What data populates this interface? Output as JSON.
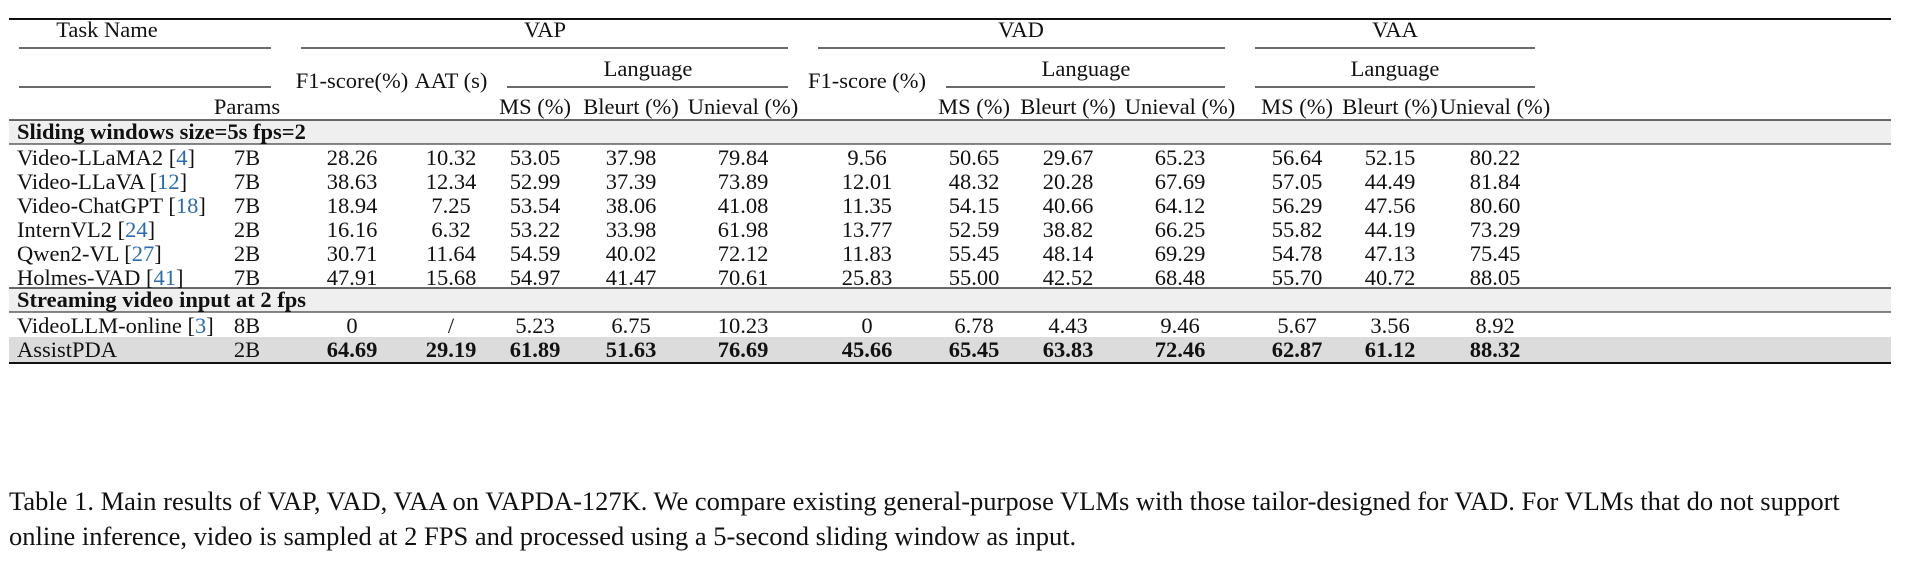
{
  "table": {
    "header": {
      "task_name": "Task Name",
      "params": "Params",
      "groups": [
        "VAP",
        "VAD",
        "VAA"
      ],
      "language": "Language",
      "f1": "F1-score(%)",
      "aat": "AAT (s)",
      "f1_vad": "F1-score (%)",
      "ms": "MS (%)",
      "bleurt": "Bleurt (%)",
      "unieval": "Unieval (%)"
    },
    "sections": [
      {
        "title": "Sliding windows size=5s fps=2",
        "rows": [
          {
            "name": "Video-LLaMA2",
            "ref": "4",
            "params": "7B",
            "cells": [
              "28.26",
              "10.32",
              "53.05",
              "37.98",
              "79.84",
              "9.56",
              "50.65",
              "29.67",
              "65.23",
              "56.64",
              "52.15",
              "80.22"
            ]
          },
          {
            "name": "Video-LLaVA",
            "ref": "12",
            "params": "7B",
            "cells": [
              "38.63",
              "12.34",
              "52.99",
              "37.39",
              "73.89",
              "12.01",
              "48.32",
              "20.28",
              "67.69",
              "57.05",
              "44.49",
              "81.84"
            ]
          },
          {
            "name": "Video-ChatGPT",
            "ref": "18",
            "params": "7B",
            "cells": [
              "18.94",
              "7.25",
              "53.54",
              "38.06",
              "41.08",
              "11.35",
              "54.15",
              "40.66",
              "64.12",
              "56.29",
              "47.56",
              "80.60"
            ]
          },
          {
            "name": "InternVL2",
            "ref": "24",
            "params": "2B",
            "cells": [
              "16.16",
              "6.32",
              "53.22",
              "33.98",
              "61.98",
              "13.77",
              "52.59",
              "38.82",
              "66.25",
              "55.82",
              "44.19",
              "73.29"
            ]
          },
          {
            "name": "Qwen2-VL",
            "ref": "27",
            "params": "2B",
            "cells": [
              "30.71",
              "11.64",
              "54.59",
              "40.02",
              "72.12",
              "11.83",
              "55.45",
              "48.14",
              "69.29",
              "54.78",
              "47.13",
              "75.45"
            ]
          },
          {
            "name": "Holmes-VAD",
            "ref": "41",
            "params": "7B",
            "cells": [
              "47.91",
              "15.68",
              "54.97",
              "41.47",
              "70.61",
              "25.83",
              "55.00",
              "42.52",
              "68.48",
              "55.70",
              "40.72",
              "88.05"
            ]
          }
        ]
      },
      {
        "title": "Streaming video input at 2 fps",
        "rows": [
          {
            "name": "VideoLLM-online",
            "ref": "3",
            "params": "8B",
            "cells": [
              "0",
              "/",
              "5.23",
              "6.75",
              "10.23",
              "0",
              "6.78",
              "4.43",
              "9.46",
              "5.67",
              "3.56",
              "8.92"
            ]
          },
          {
            "name": "AssistPDA",
            "ref": "",
            "params": "2B",
            "bold": true,
            "highlight": true,
            "cells": [
              "64.69",
              "29.19",
              "61.89",
              "51.63",
              "76.69",
              "45.66",
              "65.45",
              "63.83",
              "72.46",
              "62.87",
              "61.12",
              "88.32"
            ]
          }
        ]
      }
    ]
  },
  "caption": "Table 1. Main results of VAP, VAD, VAA on VAPDA-127K. We compare existing general-purpose VLMs with those tailor-designed for VAD. For VLMs that do not support online inference, video is sampled at 2 FPS and processed using a 5-second sliding window as input.",
  "colors": {
    "section_bg": "#efefef",
    "highlight_bg": "#dcdcdc",
    "ref_link": "#2b6cb0",
    "rule": "#111111"
  }
}
